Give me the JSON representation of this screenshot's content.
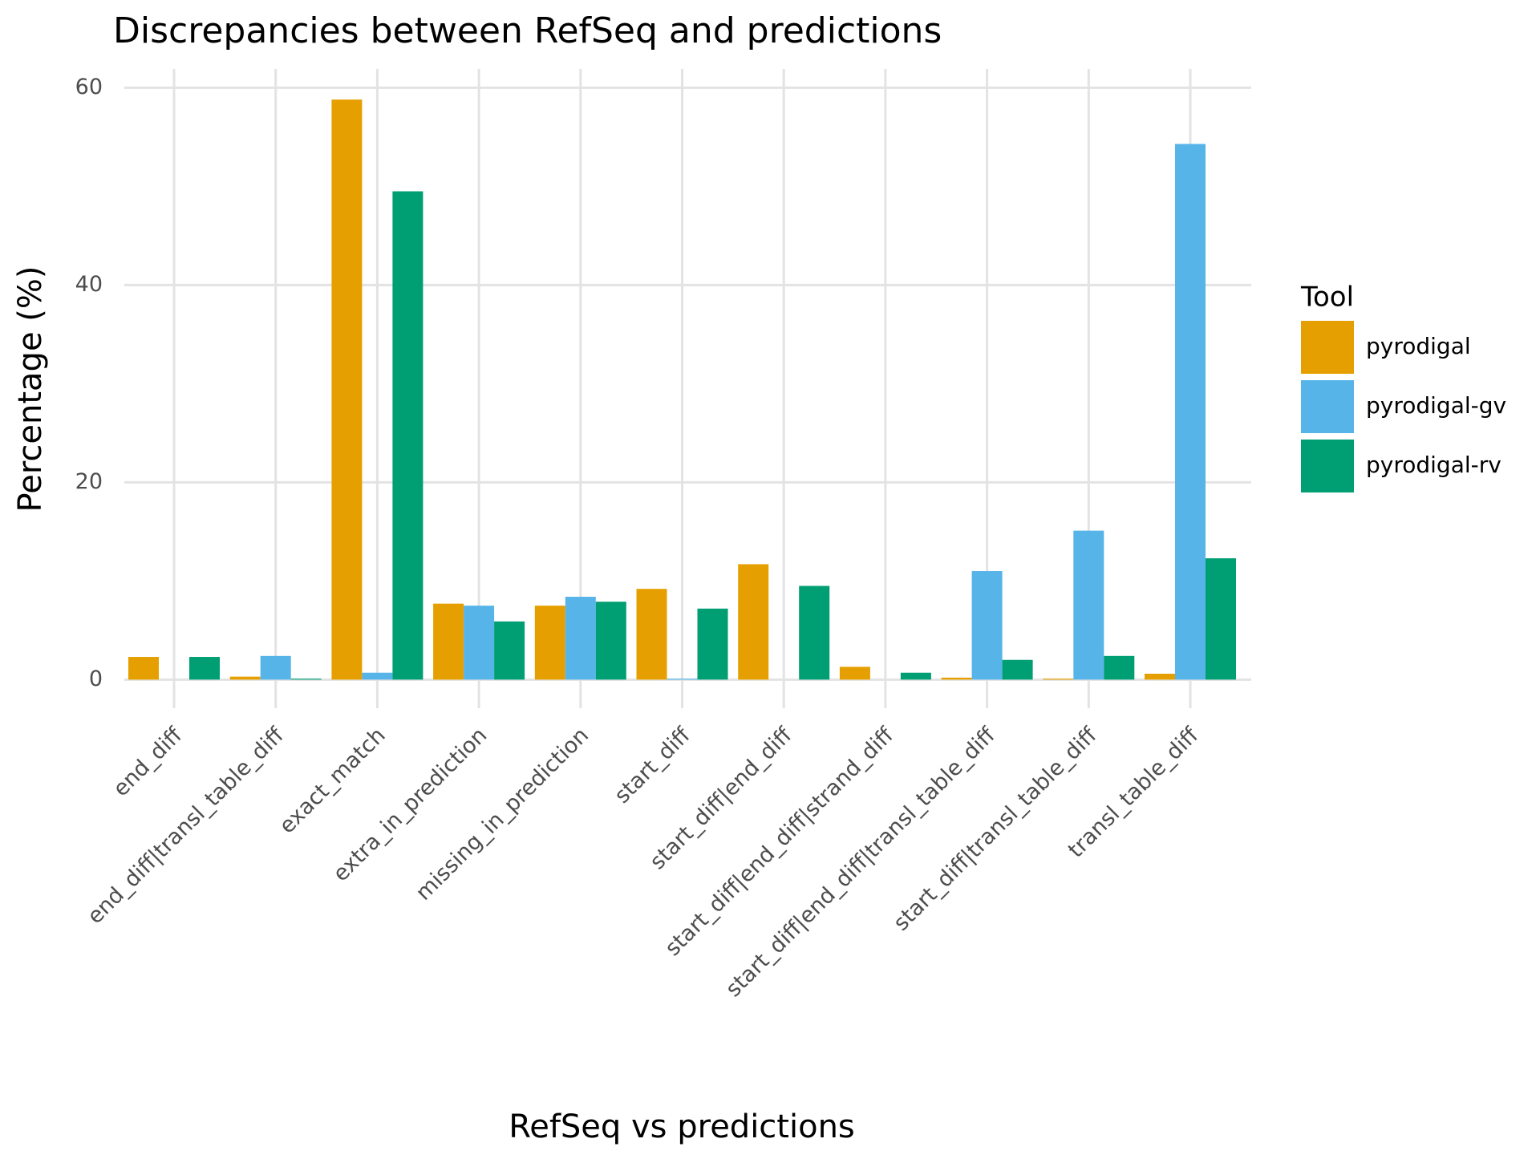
{
  "chart_data": {
    "type": "bar",
    "title": "Discrepancies between RefSeq and predictions",
    "x_label": "RefSeq vs predictions",
    "y_label": "Percentage (%)",
    "legend_title": "Tool",
    "categories": [
      "end_diff",
      "end_diff|transl_table_diff",
      "exact_match",
      "extra_in_prediction",
      "missing_in_prediction",
      "start_diff",
      "start_diff|end_diff",
      "start_diff|end_diff|strand_diff",
      "start_diff|end_diff|transl_table_diff",
      "start_diff|transl_table_diff",
      "transl_table_diff"
    ],
    "series": [
      {
        "name": "pyrodigal",
        "color": "#e69f00",
        "values": [
          2.3,
          0.3,
          58.8,
          7.7,
          7.5,
          9.2,
          11.7,
          1.3,
          0.2,
          0.1,
          0.6
        ]
      },
      {
        "name": "pyrodigal-gv",
        "color": "#56b4e9",
        "values": [
          0,
          2.4,
          0.7,
          7.5,
          8.4,
          0.1,
          0,
          0,
          11.0,
          15.1,
          54.3
        ]
      },
      {
        "name": "pyrodigal-rv",
        "color": "#009e73",
        "values": [
          2.3,
          0.1,
          49.5,
          5.9,
          7.9,
          7.2,
          9.5,
          0.7,
          2.0,
          2.4,
          12.3
        ]
      }
    ],
    "ylim": [
      -2.9,
      61.9
    ],
    "yticks": [
      0,
      20,
      40,
      60
    ],
    "grid": true,
    "legend_position": "right"
  }
}
